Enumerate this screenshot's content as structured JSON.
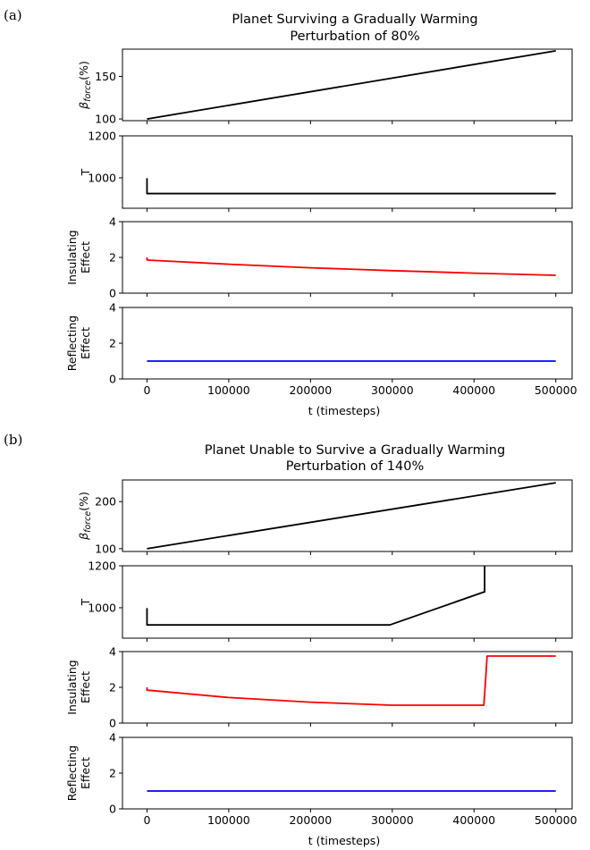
{
  "figure": {
    "panels": [
      {
        "letter": "(a)",
        "title_lines": [
          "Planet Surviving a Gradually Warming",
          "Perturbation of 80%"
        ],
        "xlabel": "t (timesteps)"
      },
      {
        "letter": "(b)",
        "title_lines": [
          "Planet Unable to Survive a Gradually Warming",
          "Perturbation of 140%"
        ],
        "xlabel": "t (timesteps)"
      }
    ]
  },
  "chart_data": [
    {
      "type": "line",
      "panel": "(a)",
      "xlabel": "t (timesteps)",
      "xlim": [
        -30000,
        520000
      ],
      "xticks": [
        0,
        100000,
        200000,
        300000,
        400000,
        500000
      ],
      "subplots": [
        {
          "ylabel": {
            "pre": "β",
            "sub": "force",
            "post": "(%)"
          },
          "ylim": [
            98,
            182
          ],
          "yticks": [
            100,
            150
          ],
          "series": [
            {
              "color": "#000000",
              "x": [
                0,
                500000
              ],
              "y": [
                100,
                180
              ]
            }
          ]
        },
        {
          "ylabel": {
            "lines": [
              "T"
            ]
          },
          "ylim": [
            855,
            1200
          ],
          "yticks": [
            1000,
            1200
          ],
          "series": [
            {
              "color": "#000000",
              "x": [
                0,
                0,
                0,
                6000,
                500000
              ],
              "y": [
                998,
                925,
                925,
                925,
                925
              ]
            }
          ]
        },
        {
          "ylabel": {
            "lines": [
              "Insulating",
              "Effect"
            ]
          },
          "ylim": [
            0,
            4
          ],
          "yticks": [
            0,
            2,
            4
          ],
          "series": [
            {
              "color": "#ff0000",
              "x": [
                0,
                0,
                1000,
                100000,
                200000,
                300000,
                400000,
                500000
              ],
              "y": [
                2.0,
                1.86,
                1.85,
                1.62,
                1.42,
                1.26,
                1.12,
                1.0
              ]
            }
          ]
        },
        {
          "ylabel": {
            "lines": [
              "Reflecting",
              "Effect"
            ]
          },
          "ylim": [
            0,
            4
          ],
          "yticks": [
            0,
            2,
            4
          ],
          "series": [
            {
              "color": "#0000ff",
              "x": [
                0,
                500000
              ],
              "y": [
                1.0,
                1.0
              ]
            }
          ]
        }
      ]
    },
    {
      "type": "line",
      "panel": "(b)",
      "xlabel": "t (timesteps)",
      "xlim": [
        -30000,
        520000
      ],
      "xticks": [
        0,
        100000,
        200000,
        300000,
        400000,
        500000
      ],
      "subplots": [
        {
          "ylabel": {
            "pre": "β",
            "sub": "force",
            "post": "(%)"
          },
          "ylim": [
            94,
            246
          ],
          "yticks": [
            100,
            200
          ],
          "series": [
            {
              "color": "#000000",
              "x": [
                0,
                500000
              ],
              "y": [
                100,
                240
              ]
            }
          ]
        },
        {
          "ylabel": {
            "lines": [
              "T"
            ]
          },
          "ylim": [
            855,
            1200
          ],
          "yticks": [
            1000,
            1200
          ],
          "series": [
            {
              "color": "#000000",
              "x": [
                0,
                0,
                0,
                6000,
                297000,
                412000,
                413000,
                413000
              ],
              "y": [
                998,
                918,
                918,
                918,
                918,
                1075,
                1075,
                1200
              ]
            }
          ]
        },
        {
          "ylabel": {
            "lines": [
              "Insulating",
              "Effect"
            ]
          },
          "ylim": [
            0,
            4
          ],
          "yticks": [
            0,
            2,
            4
          ],
          "series": [
            {
              "color": "#ff0000",
              "x": [
                0,
                0,
                1000,
                100000,
                200000,
                300000,
                412000,
                414000,
                416000,
                500000
              ],
              "y": [
                2.0,
                1.85,
                1.84,
                1.43,
                1.17,
                1.0,
                1.0,
                2.3,
                3.75,
                3.75
              ]
            }
          ]
        },
        {
          "ylabel": {
            "lines": [
              "Reflecting",
              "Effect"
            ]
          },
          "ylim": [
            0,
            4
          ],
          "yticks": [
            0,
            2,
            4
          ],
          "series": [
            {
              "color": "#0000ff",
              "x": [
                0,
                500000
              ],
              "y": [
                1.0,
                1.0
              ]
            }
          ]
        }
      ]
    }
  ]
}
